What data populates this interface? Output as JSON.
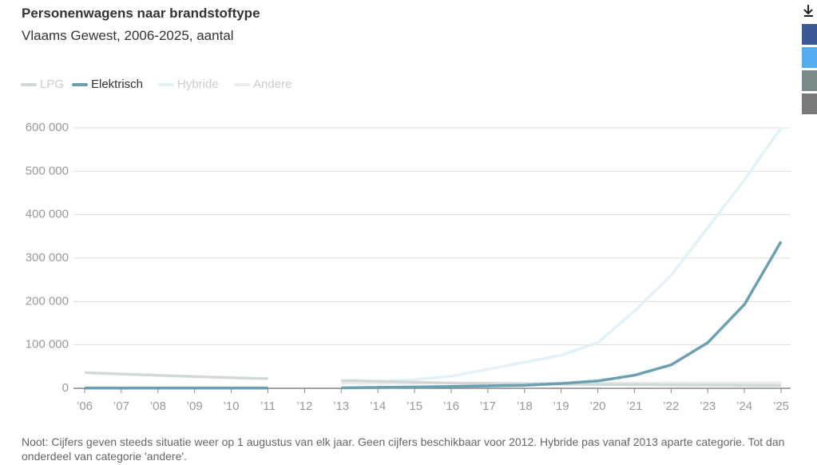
{
  "chart_data": {
    "type": "line",
    "title": "Personenwagens naar brandstoftype",
    "subtitle": "Vlaams Gewest, 2006-2025, aantal",
    "note": "Noot: Cijfers geven steeds situatie weer op 1 augustus van elk jaar. Geen cijfers beschikbaar voor 2012. Hybride pas vanaf 2013 aparte categorie. Tot dan onderdeel van categorie 'andere'.",
    "categories": [
      "’06",
      "’07",
      "’08",
      "’09",
      "’10",
      "’11",
      "’12",
      "’13",
      "’14",
      "’15",
      "’16",
      "’17",
      "’18",
      "’19",
      "’20",
      "’21",
      "’22",
      "’23",
      "’24",
      "’25"
    ],
    "series": [
      {
        "name": "LPG",
        "color": "#d2d8d8",
        "values": [
          36000,
          33000,
          30000,
          27000,
          24500,
          22000,
          null,
          18000,
          16000,
          14000,
          12000,
          11000,
          10000,
          9500,
          9000,
          8500,
          8000,
          7500,
          7000,
          6500
        ]
      },
      {
        "name": "Elektrisch",
        "color": "#6d9fb3",
        "values": [
          500,
          500,
          500,
          500,
          500,
          500,
          null,
          1000,
          2000,
          3000,
          4000,
          5500,
          7000,
          11000,
          17000,
          30000,
          54000,
          105000,
          193000,
          338000
        ]
      },
      {
        "name": "Hybride",
        "color": "#e2f2f8",
        "values": [
          null,
          null,
          null,
          null,
          null,
          null,
          null,
          14000,
          16000,
          20000,
          28000,
          44000,
          60000,
          76000,
          105000,
          178000,
          260000,
          370000,
          480000,
          600000
        ]
      },
      {
        "name": "Andere",
        "color": "#ebebeb",
        "values": [
          2000,
          2000,
          2000,
          2000,
          2000,
          2000,
          null,
          12000,
          12000,
          12000,
          12000,
          12000,
          12000,
          12000,
          11500,
          12000,
          12500,
          13000,
          13000,
          13000
        ]
      }
    ],
    "ylim": [
      0,
      600000
    ],
    "yticks": [
      {
        "value": 0,
        "label": "0"
      },
      {
        "value": 100000,
        "label": "100 000"
      },
      {
        "value": 200000,
        "label": "200 000"
      },
      {
        "value": 300000,
        "label": "300 000"
      },
      {
        "value": 400000,
        "label": "400 000"
      },
      {
        "value": 500000,
        "label": "500 000"
      },
      {
        "value": 600000,
        "label": "600 000"
      }
    ],
    "grid": true
  }
}
